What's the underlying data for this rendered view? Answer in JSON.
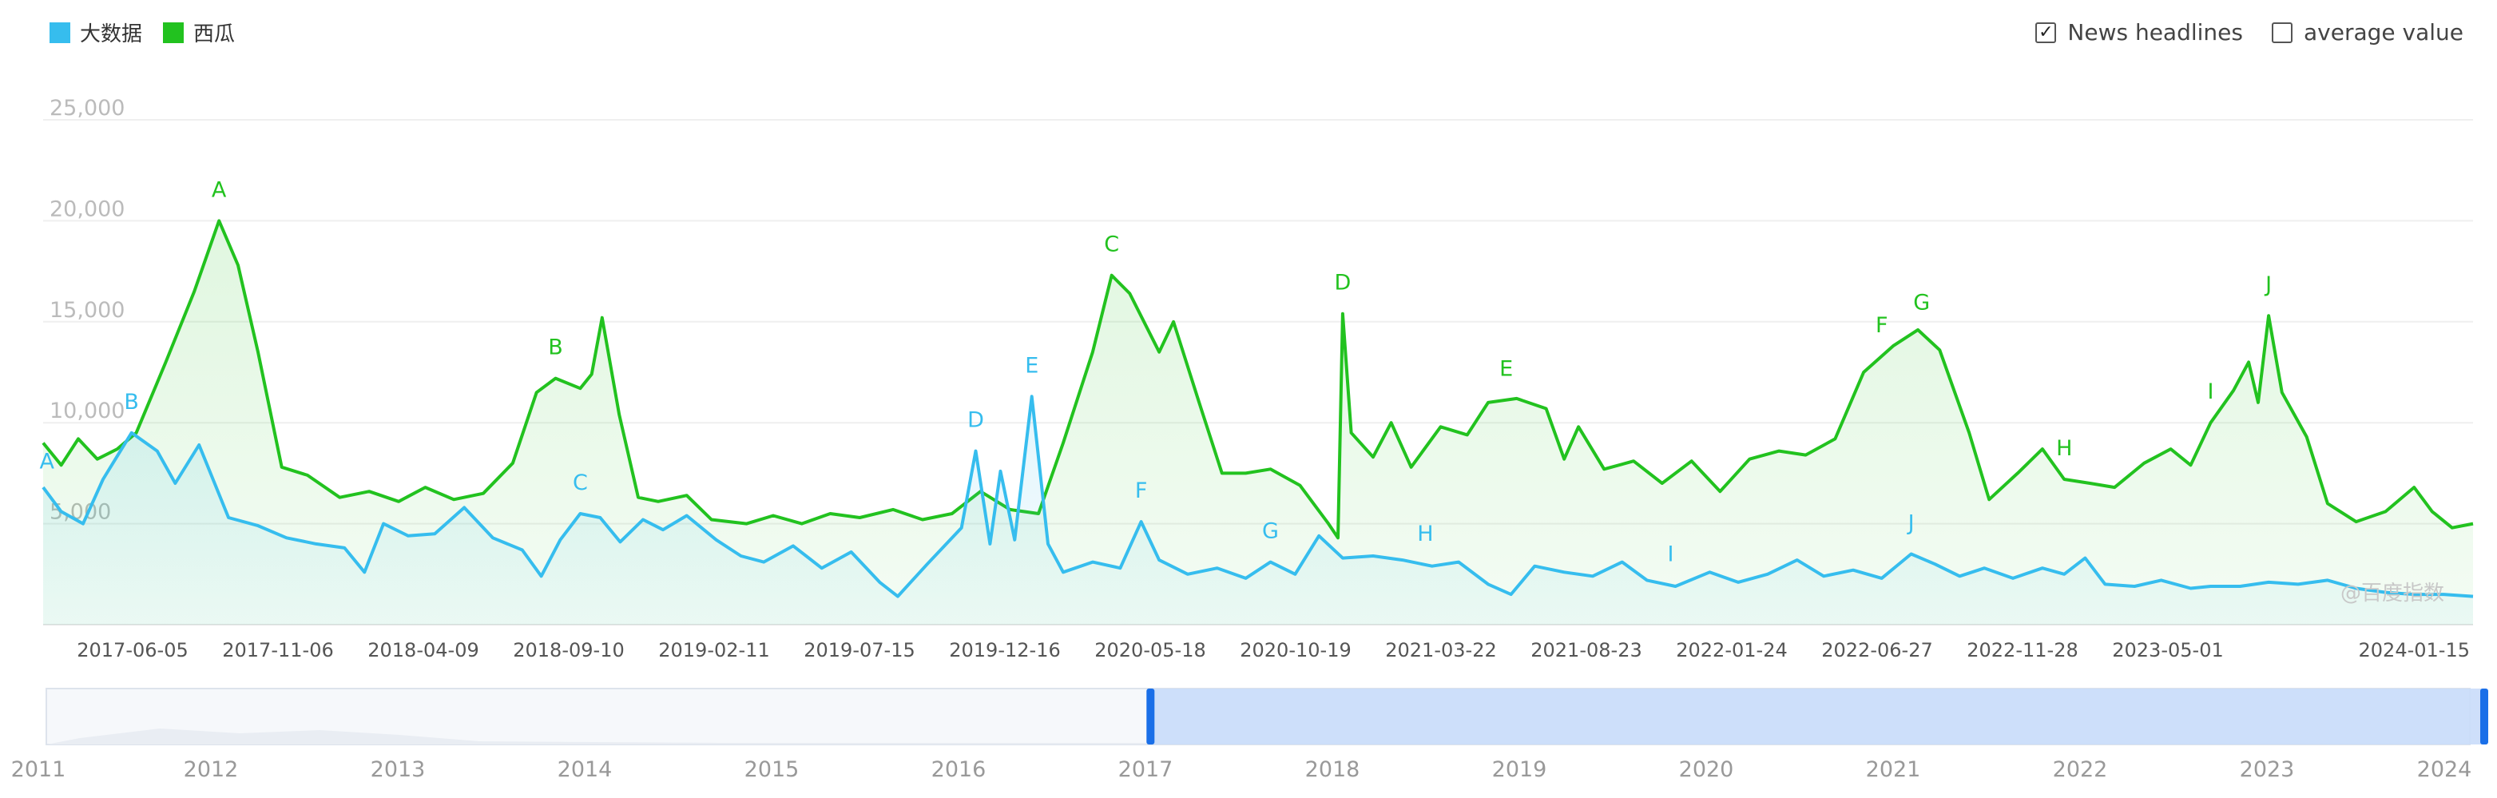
{
  "legend": {
    "series1": {
      "label": "大数据",
      "color": "#36bdee"
    },
    "series2": {
      "label": "西瓜",
      "color": "#22c21f"
    }
  },
  "toggles": {
    "news": {
      "label": "News headlines",
      "checked": true
    },
    "average": {
      "label": "average value",
      "checked": false
    }
  },
  "watermark": "@百度指数",
  "colors": {
    "grid": "#efefef",
    "axis_text": "#999999",
    "slider_fill": "#c9dcfa",
    "slider_handle": "#1a6fe8"
  },
  "chart_data": {
    "type": "line",
    "title": "",
    "ylim": [
      0,
      25000
    ],
    "y_ticks": [
      "25,000",
      "20,000",
      "15,000",
      "10,000",
      "5,000"
    ],
    "y_tick_values": [
      25000,
      20000,
      15000,
      10000,
      5000
    ],
    "x_range": [
      "2017-02-01",
      "2024-02-01"
    ],
    "x_tick_labels": [
      "2017-06-05",
      "2017-11-06",
      "2018-04-09",
      "2018-09-10",
      "2019-02-11",
      "2019-07-15",
      "2019-12-16",
      "2020-05-18",
      "2020-10-19",
      "2021-03-22",
      "2021-08-23",
      "2022-01-24",
      "2022-06-27",
      "2022-11-28",
      "2023-05-01",
      "2024-01-15"
    ],
    "series": [
      {
        "name": "大数据",
        "color": "#36bdee",
        "points": [
          [
            "2017-02-01",
            6800
          ],
          [
            "2017-02-20",
            5600
          ],
          [
            "2017-03-15",
            5000
          ],
          [
            "2017-04-05",
            7200
          ],
          [
            "2017-05-05",
            9500
          ],
          [
            "2017-06-01",
            8600
          ],
          [
            "2017-06-20",
            7000
          ],
          [
            "2017-07-15",
            8900
          ],
          [
            "2017-08-15",
            5300
          ],
          [
            "2017-09-15",
            4900
          ],
          [
            "2017-10-15",
            4300
          ],
          [
            "2017-11-15",
            4000
          ],
          [
            "2017-12-15",
            3800
          ],
          [
            "2018-01-05",
            2600
          ],
          [
            "2018-01-25",
            5000
          ],
          [
            "2018-02-20",
            4400
          ],
          [
            "2018-03-20",
            4500
          ],
          [
            "2018-04-20",
            5800
          ],
          [
            "2018-05-20",
            4300
          ],
          [
            "2018-06-20",
            3700
          ],
          [
            "2018-07-10",
            2400
          ],
          [
            "2018-07-30",
            4200
          ],
          [
            "2018-08-20",
            5500
          ],
          [
            "2018-09-10",
            5300
          ],
          [
            "2018-10-01",
            4100
          ],
          [
            "2018-10-25",
            5200
          ],
          [
            "2018-11-15",
            4700
          ],
          [
            "2018-12-10",
            5400
          ],
          [
            "2019-01-10",
            4200
          ],
          [
            "2019-02-05",
            3400
          ],
          [
            "2019-03-01",
            3100
          ],
          [
            "2019-04-01",
            3900
          ],
          [
            "2019-05-01",
            2800
          ],
          [
            "2019-06-01",
            3600
          ],
          [
            "2019-07-01",
            2100
          ],
          [
            "2019-07-20",
            1400
          ],
          [
            "2019-08-20",
            3000
          ],
          [
            "2019-09-25",
            4800
          ],
          [
            "2019-10-10",
            8600
          ],
          [
            "2019-10-25",
            4000
          ],
          [
            "2019-11-05",
            7600
          ],
          [
            "2019-11-20",
            4200
          ],
          [
            "2019-12-08",
            11300
          ],
          [
            "2019-12-25",
            4000
          ],
          [
            "2020-01-10",
            2600
          ],
          [
            "2020-02-10",
            3100
          ],
          [
            "2020-03-10",
            2800
          ],
          [
            "2020-04-01",
            5100
          ],
          [
            "2020-04-20",
            3200
          ],
          [
            "2020-05-20",
            2500
          ],
          [
            "2020-06-20",
            2800
          ],
          [
            "2020-07-20",
            2300
          ],
          [
            "2020-08-15",
            3100
          ],
          [
            "2020-09-10",
            2500
          ],
          [
            "2020-10-05",
            4400
          ],
          [
            "2020-10-30",
            3300
          ],
          [
            "2020-12-01",
            3400
          ],
          [
            "2021-01-01",
            3200
          ],
          [
            "2021-02-01",
            2900
          ],
          [
            "2021-03-01",
            3100
          ],
          [
            "2021-04-01",
            2000
          ],
          [
            "2021-04-25",
            1500
          ],
          [
            "2021-05-20",
            2900
          ],
          [
            "2021-06-20",
            2600
          ],
          [
            "2021-07-20",
            2400
          ],
          [
            "2021-08-20",
            3100
          ],
          [
            "2021-09-15",
            2200
          ],
          [
            "2021-10-15",
            1900
          ],
          [
            "2021-11-20",
            2600
          ],
          [
            "2021-12-20",
            2100
          ],
          [
            "2022-01-20",
            2500
          ],
          [
            "2022-02-20",
            3200
          ],
          [
            "2022-03-20",
            2400
          ],
          [
            "2022-04-20",
            2700
          ],
          [
            "2022-05-20",
            2300
          ],
          [
            "2022-06-20",
            3500
          ],
          [
            "2022-07-15",
            3000
          ],
          [
            "2022-08-10",
            2400
          ],
          [
            "2022-09-05",
            2800
          ],
          [
            "2022-10-05",
            2300
          ],
          [
            "2022-11-05",
            2800
          ],
          [
            "2022-11-28",
            2500
          ],
          [
            "2022-12-20",
            3300
          ],
          [
            "2023-01-10",
            2000
          ],
          [
            "2023-02-10",
            1900
          ],
          [
            "2023-03-10",
            2200
          ],
          [
            "2023-04-10",
            1800
          ],
          [
            "2023-05-01",
            1900
          ],
          [
            "2023-06-01",
            1900
          ],
          [
            "2023-07-01",
            2100
          ],
          [
            "2023-08-01",
            2000
          ],
          [
            "2023-09-01",
            2200
          ],
          [
            "2023-10-01",
            1800
          ],
          [
            "2023-11-01",
            1600
          ],
          [
            "2023-12-01",
            1500
          ],
          [
            "2024-01-01",
            1500
          ],
          [
            "2024-02-01",
            1400
          ]
        ]
      },
      {
        "name": "西瓜",
        "color": "#22c21f",
        "points": [
          [
            "2017-02-01",
            9000
          ],
          [
            "2017-02-20",
            7900
          ],
          [
            "2017-03-10",
            9200
          ],
          [
            "2017-03-30",
            8200
          ],
          [
            "2017-04-20",
            8700
          ],
          [
            "2017-05-10",
            9500
          ],
          [
            "2017-06-10",
            13000
          ],
          [
            "2017-07-10",
            16500
          ],
          [
            "2017-08-05",
            20000
          ],
          [
            "2017-08-25",
            17800
          ],
          [
            "2017-09-15",
            13500
          ],
          [
            "2017-10-10",
            7800
          ],
          [
            "2017-11-06",
            7400
          ],
          [
            "2017-12-10",
            6300
          ],
          [
            "2018-01-10",
            6600
          ],
          [
            "2018-02-10",
            6100
          ],
          [
            "2018-03-10",
            6800
          ],
          [
            "2018-04-09",
            6200
          ],
          [
            "2018-05-10",
            6500
          ],
          [
            "2018-06-10",
            8000
          ],
          [
            "2018-07-05",
            11500
          ],
          [
            "2018-07-25",
            12200
          ],
          [
            "2018-08-20",
            11700
          ],
          [
            "2018-09-01",
            12400
          ],
          [
            "2018-09-12",
            15200
          ],
          [
            "2018-09-30",
            10400
          ],
          [
            "2018-10-20",
            6300
          ],
          [
            "2018-11-10",
            6100
          ],
          [
            "2018-12-10",
            6400
          ],
          [
            "2019-01-05",
            5200
          ],
          [
            "2019-02-11",
            5000
          ],
          [
            "2019-03-11",
            5400
          ],
          [
            "2019-04-10",
            5000
          ],
          [
            "2019-05-10",
            5500
          ],
          [
            "2019-06-10",
            5300
          ],
          [
            "2019-07-15",
            5700
          ],
          [
            "2019-08-15",
            5200
          ],
          [
            "2019-09-15",
            5500
          ],
          [
            "2019-10-15",
            6600
          ],
          [
            "2019-11-15",
            5700
          ],
          [
            "2019-12-15",
            5500
          ],
          [
            "2020-01-10",
            9000
          ],
          [
            "2020-02-10",
            13500
          ],
          [
            "2020-03-01",
            17300
          ],
          [
            "2020-03-20",
            16400
          ],
          [
            "2020-04-20",
            13500
          ],
          [
            "2020-05-05",
            15000
          ],
          [
            "2020-06-01",
            11000
          ],
          [
            "2020-06-25",
            7500
          ],
          [
            "2020-07-20",
            7500
          ],
          [
            "2020-08-15",
            7700
          ],
          [
            "2020-09-15",
            6900
          ],
          [
            "2020-10-15",
            5000
          ],
          [
            "2020-10-25",
            4300
          ],
          [
            "2020-10-30",
            15400
          ],
          [
            "2020-11-08",
            9500
          ],
          [
            "2020-12-01",
            8300
          ],
          [
            "2020-12-20",
            10000
          ],
          [
            "2021-01-10",
            7800
          ],
          [
            "2021-02-10",
            9800
          ],
          [
            "2021-03-10",
            9400
          ],
          [
            "2021-04-01",
            11000
          ],
          [
            "2021-05-01",
            11200
          ],
          [
            "2021-06-01",
            10700
          ],
          [
            "2021-06-20",
            8200
          ],
          [
            "2021-07-05",
            9800
          ],
          [
            "2021-08-01",
            7700
          ],
          [
            "2021-09-01",
            8100
          ],
          [
            "2021-10-01",
            7000
          ],
          [
            "2021-11-01",
            8100
          ],
          [
            "2021-12-01",
            6600
          ],
          [
            "2022-01-01",
            8200
          ],
          [
            "2022-02-01",
            8600
          ],
          [
            "2022-03-01",
            8400
          ],
          [
            "2022-04-01",
            9200
          ],
          [
            "2022-05-01",
            12500
          ],
          [
            "2022-06-01",
            13800
          ],
          [
            "2022-06-27",
            14600
          ],
          [
            "2022-07-20",
            13600
          ],
          [
            "2022-08-20",
            9500
          ],
          [
            "2022-09-10",
            6200
          ],
          [
            "2022-10-10",
            7500
          ],
          [
            "2022-11-05",
            8700
          ],
          [
            "2022-11-28",
            7200
          ],
          [
            "2022-12-25",
            7000
          ],
          [
            "2023-01-20",
            6800
          ],
          [
            "2023-02-20",
            8000
          ],
          [
            "2023-03-20",
            8700
          ],
          [
            "2023-04-10",
            7900
          ],
          [
            "2023-05-01",
            10000
          ],
          [
            "2023-05-25",
            11600
          ],
          [
            "2023-06-10",
            13000
          ],
          [
            "2023-06-20",
            11000
          ],
          [
            "2023-07-01",
            15300
          ],
          [
            "2023-07-15",
            11500
          ],
          [
            "2023-08-10",
            9300
          ],
          [
            "2023-09-01",
            6000
          ],
          [
            "2023-10-01",
            5100
          ],
          [
            "2023-11-01",
            5600
          ],
          [
            "2023-12-01",
            6800
          ],
          [
            "2023-12-20",
            5600
          ],
          [
            "2024-01-10",
            4800
          ],
          [
            "2024-02-01",
            5000
          ]
        ]
      }
    ],
    "annotations": [
      {
        "series": "西瓜",
        "label": "A",
        "x": "2017-08-05"
      },
      {
        "series": "西瓜",
        "label": "B",
        "x": "2018-07-25"
      },
      {
        "series": "西瓜",
        "label": "C",
        "x": "2020-03-01"
      },
      {
        "series": "西瓜",
        "label": "D",
        "x": "2020-10-30"
      },
      {
        "series": "西瓜",
        "label": "E",
        "x": "2021-04-20"
      },
      {
        "series": "西瓜",
        "label": "F",
        "x": "2022-05-20"
      },
      {
        "series": "西瓜",
        "label": "G",
        "x": "2022-07-01"
      },
      {
        "series": "西瓜",
        "label": "H",
        "x": "2022-11-28"
      },
      {
        "series": "西瓜",
        "label": "I",
        "x": "2023-05-01"
      },
      {
        "series": "西瓜",
        "label": "J",
        "x": "2023-07-01"
      },
      {
        "series": "大数据",
        "label": "A",
        "x": "2017-02-05"
      },
      {
        "series": "大数据",
        "label": "B",
        "x": "2017-05-05"
      },
      {
        "series": "大数据",
        "label": "C",
        "x": "2018-08-20"
      },
      {
        "series": "大数据",
        "label": "D",
        "x": "2019-10-10"
      },
      {
        "series": "大数据",
        "label": "E",
        "x": "2019-12-08"
      },
      {
        "series": "大数据",
        "label": "F",
        "x": "2020-04-01"
      },
      {
        "series": "大数据",
        "label": "G",
        "x": "2020-08-15"
      },
      {
        "series": "大数据",
        "label": "H",
        "x": "2021-01-25"
      },
      {
        "series": "大数据",
        "label": "I",
        "x": "2021-10-10"
      },
      {
        "series": "大数据",
        "label": "J",
        "x": "2022-06-20"
      }
    ],
    "overview": {
      "years": [
        "2011",
        "2012",
        "2013",
        "2014",
        "2015",
        "2016",
        "2017",
        "2018",
        "2019",
        "2020",
        "2021",
        "2022",
        "2023",
        "2024"
      ],
      "selected_range": [
        "2017",
        "2024"
      ]
    }
  }
}
